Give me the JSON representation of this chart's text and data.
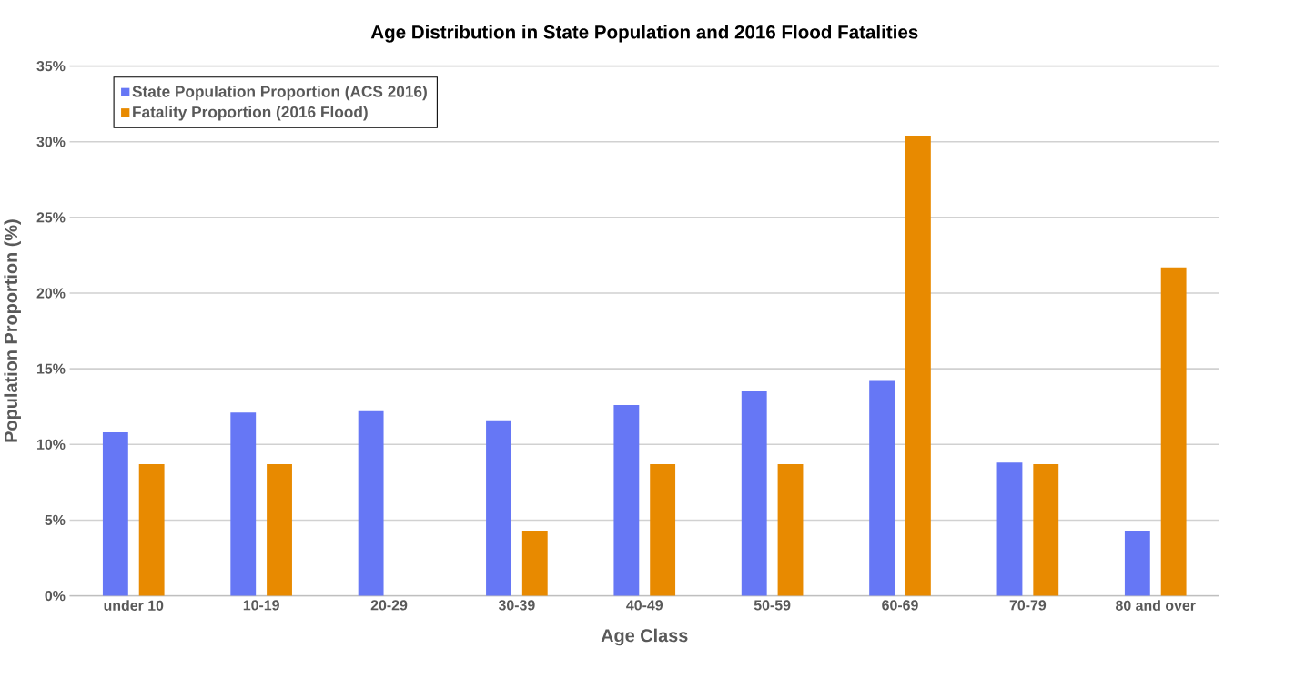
{
  "chart_data": {
    "type": "bar",
    "title": "Age Distribution in State Population and 2016 Flood Fatalities",
    "xlabel": "Age Class",
    "ylabel": "Population Proportion (%)",
    "categories": [
      "under 10",
      "10-19",
      "20-29",
      "30-39",
      "40-49",
      "50-59",
      "60-69",
      "70-79",
      "80 and over"
    ],
    "series": [
      {
        "name": "State Population Proportion (ACS 2016)",
        "color": "#6677f5",
        "values": [
          10.8,
          12.1,
          12.2,
          11.6,
          12.6,
          13.5,
          14.2,
          8.8,
          4.3
        ]
      },
      {
        "name": "Fatality Proportion (2016 Flood)",
        "color": "#e88a00",
        "values": [
          8.7,
          8.7,
          0,
          4.3,
          8.7,
          8.7,
          30.4,
          8.7,
          21.7
        ]
      }
    ],
    "ylim": [
      0,
      35
    ],
    "yticks": [
      {
        "value": 0,
        "label": "0%"
      },
      {
        "value": 5,
        "label": "5%"
      },
      {
        "value": 10,
        "label": "10%"
      },
      {
        "value": 15,
        "label": "15%"
      },
      {
        "value": 20,
        "label": "20%"
      },
      {
        "value": 25,
        "label": "25%"
      },
      {
        "value": 30,
        "label": "30%"
      },
      {
        "value": 35,
        "label": "35%"
      }
    ],
    "grid": "y",
    "legend": "top left"
  }
}
